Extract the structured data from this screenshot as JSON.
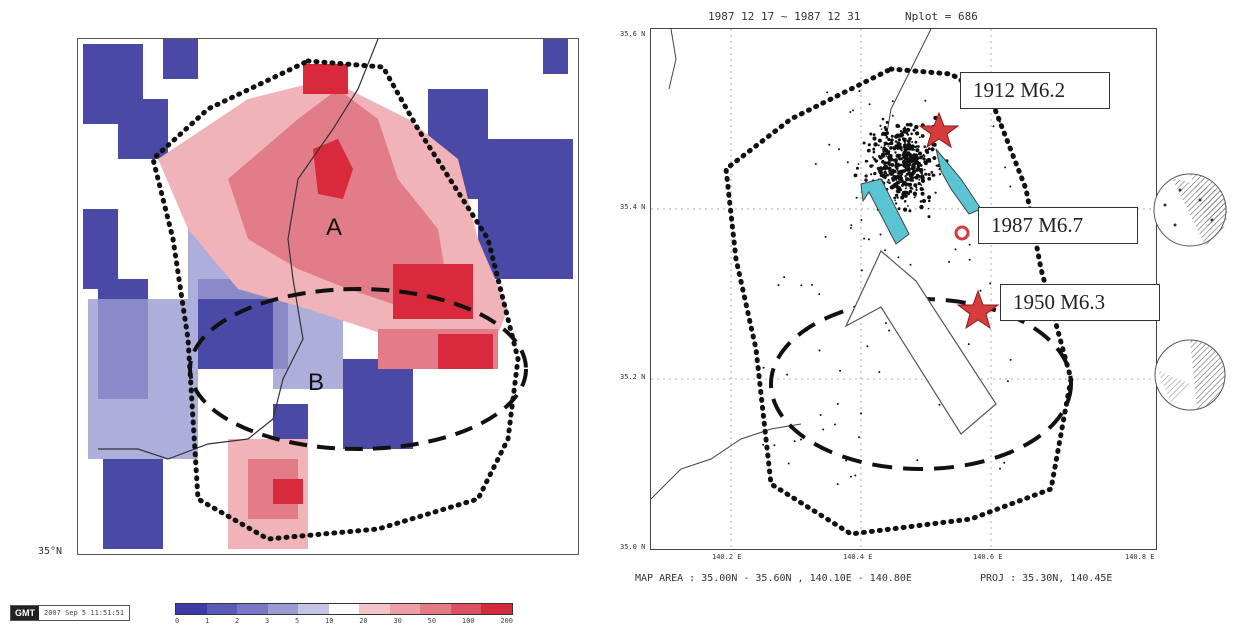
{
  "left_map": {
    "region_a_label": "A",
    "region_b_label": "B",
    "axis_label": "35°N"
  },
  "footer": {
    "gmt_logo": "GMT",
    "gmt_stamp": "2007 Sep 5 11:51:51",
    "scale_ticks": [
      "0",
      "1",
      "2",
      "3",
      "5",
      "10",
      "20",
      "30",
      "50",
      "100",
      "200"
    ],
    "scale_colors": [
      "#3c3ca8",
      "#5a5ab8",
      "#7878c6",
      "#9c9cd4",
      "#c4c4e6",
      "#ffffff",
      "#f4c4c8",
      "#eea0a8",
      "#e47c86",
      "#dc5262",
      "#d42a3a"
    ]
  },
  "right_map": {
    "title_dates": "1987 12 17 ~ 1987 12 31",
    "title_count": "Nplot = 686",
    "y_ticks": [
      "35.6 N",
      "35.4 N",
      "35.2 N",
      "35.0 N"
    ],
    "x_ticks": [
      "140.2 E",
      "140.4 E",
      "140.6 E",
      "140.8 E"
    ],
    "footer_area": "MAP AREA : 35.00N - 35.60N , 140.10E - 140.80E",
    "footer_proj": "PROJ : 35.30N, 140.45E",
    "events": [
      {
        "label": "1912 M6.2",
        "marker": "red-star"
      },
      {
        "label": "1987 M6.7",
        "marker": "red-circle"
      },
      {
        "label": "1950 M6.3",
        "marker": "red-star"
      }
    ],
    "colors": {
      "star": "#d63c3c",
      "arrow_cyan": "#5bc4d2",
      "circle": "#d63c3c"
    }
  }
}
